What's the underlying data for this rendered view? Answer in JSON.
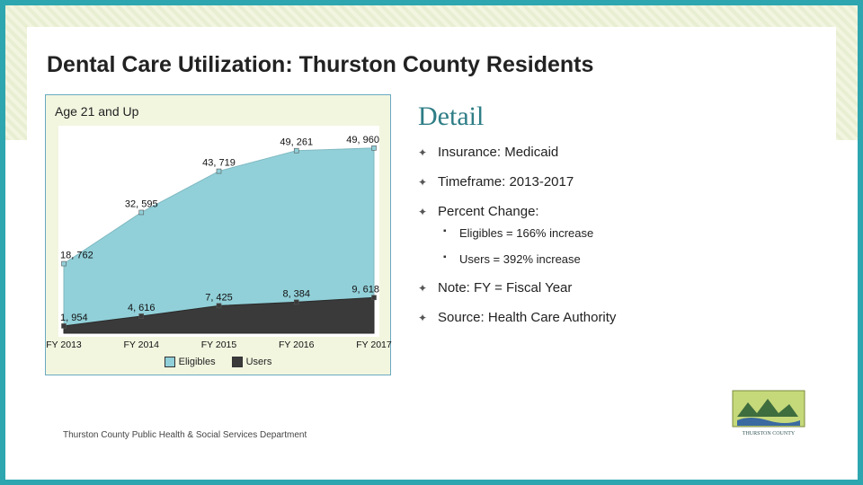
{
  "title": "Dental Care Utilization: Thurston County Residents",
  "chart": {
    "title": "Age 21 and Up",
    "type": "area",
    "background": "#f2f6df",
    "border_color": "#6aa9c1",
    "plot_background": "#ffffff",
    "categories": [
      "FY 2013",
      "FY 2014",
      "FY 2015",
      "FY 2016",
      "FY 2017"
    ],
    "series": [
      {
        "name": "Eligibles",
        "values": [
          18762,
          32595,
          43719,
          49261,
          49960
        ],
        "fill": "#91d0d9",
        "stroke": "#7fb8c0",
        "labels": [
          "18, 762",
          "32, 595",
          "43, 719",
          "49, 261",
          "49, 960"
        ]
      },
      {
        "name": "Users",
        "values": [
          1954,
          4616,
          7425,
          8384,
          9618
        ],
        "fill": "#3a3a3a",
        "stroke": "#2a2a2a",
        "labels": [
          "1, 954",
          "4, 616",
          "7, 425",
          "8, 384",
          "9, 618"
        ]
      }
    ],
    "y_max": 55000,
    "y_min": 0,
    "legend": {
      "eligibles": {
        "label": "Eligibles",
        "fill": "#91d0d9",
        "border": "#333"
      },
      "users": {
        "label": "Users",
        "fill": "#3a3a3a",
        "border": "#333"
      }
    }
  },
  "detail": {
    "heading": "Detail",
    "items": {
      "insurance": "Insurance: Medicaid",
      "timeframe": "Timeframe: 2013-2017",
      "percent_change": "Percent Change:",
      "pc_eligibles": "Eligibles = 166% increase",
      "pc_users": "Users = 392% increase",
      "note": "Note: FY = Fiscal Year",
      "source": "Source: Health Care Authority"
    }
  },
  "footer": "Thurston County Public Health & Social Services Department",
  "logo_text": "THURSTON COUNTY"
}
